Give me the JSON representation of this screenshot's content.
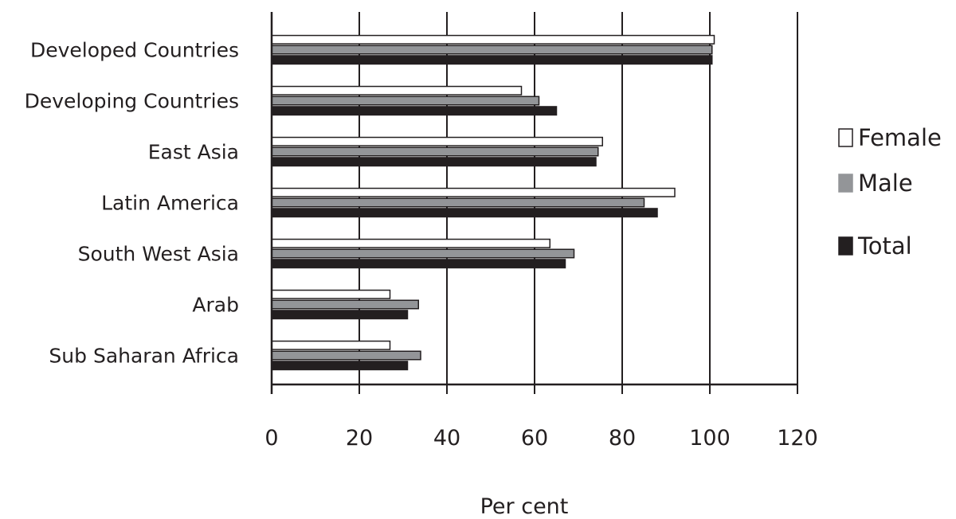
{
  "chart_data": {
    "type": "bar",
    "orientation": "horizontal",
    "categories": [
      "Developed Countries",
      "Developing Countries",
      "East Asia",
      "Latin America",
      "South West Asia",
      "Arab",
      "Sub Saharan Africa"
    ],
    "series": [
      {
        "name": "Female",
        "values": [
          101,
          57,
          75.5,
          92,
          63.5,
          27,
          27
        ],
        "color": "#ffffff"
      },
      {
        "name": "Male",
        "values": [
          100.5,
          61,
          74.5,
          85,
          69,
          33.5,
          34
        ],
        "color": "#939598"
      },
      {
        "name": "Total",
        "values": [
          100.5,
          65,
          74,
          88,
          67,
          31,
          31
        ],
        "color": "#231f20"
      }
    ],
    "xlabel": "Per cent",
    "ylabel": "",
    "xlim": [
      0,
      120
    ],
    "xticks": [
      0,
      20,
      40,
      60,
      80,
      100,
      120
    ],
    "grid": "vertical gridlines",
    "legend_position": "right"
  }
}
